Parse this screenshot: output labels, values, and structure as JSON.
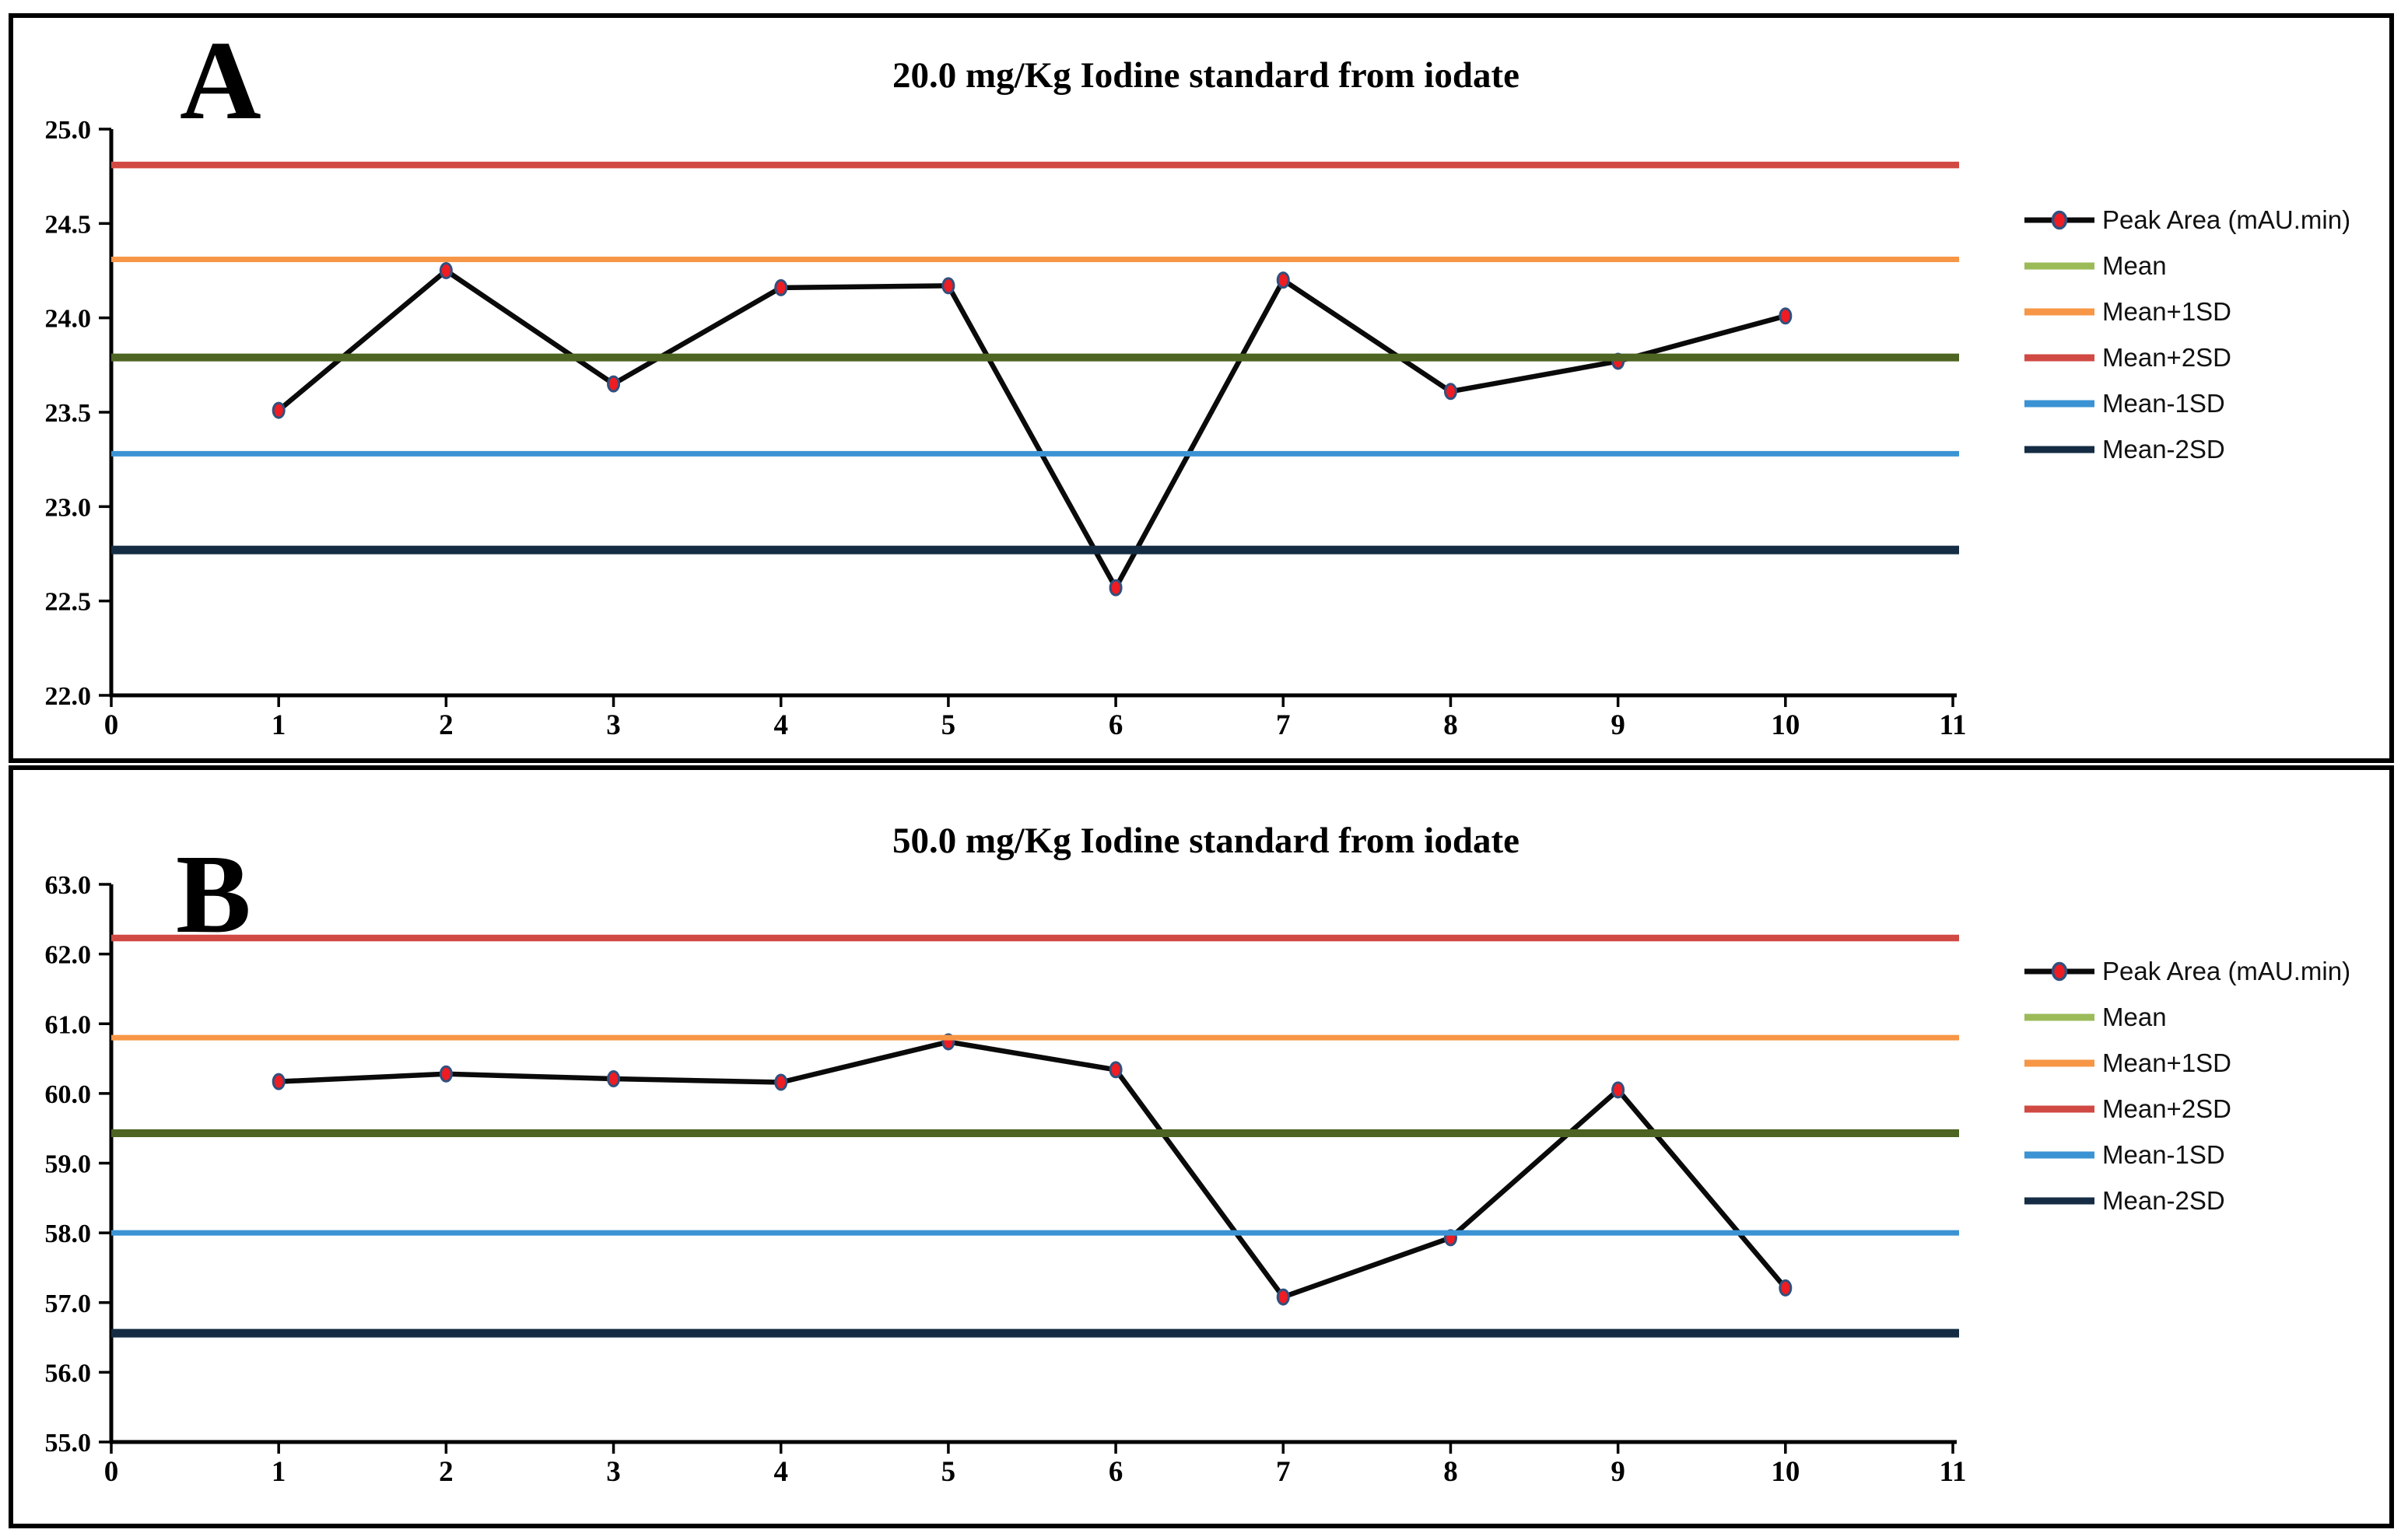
{
  "figure": {
    "background_color": "#ffffff",
    "panel_border_color": "#000000",
    "panel_labels": [
      "A",
      "B"
    ]
  },
  "chart_data": [
    {
      "type": "line",
      "panel_label": "A",
      "title": "20.0 mg/Kg Iodine standard from iodate",
      "xlabel": "",
      "ylabel": "",
      "xlim": [
        0,
        11
      ],
      "ylim": [
        22.0,
        25.0
      ],
      "x_ticks": [
        0,
        1,
        2,
        3,
        4,
        5,
        6,
        7,
        8,
        9,
        10,
        11
      ],
      "x_tick_labels": [
        "0",
        "1",
        "2",
        "3",
        "4",
        "5",
        "6",
        "7",
        "8",
        "9",
        "10",
        "11"
      ],
      "y_ticks": [
        25.0,
        24.5,
        24.0,
        23.5,
        23.0,
        22.5,
        22.0
      ],
      "y_tick_labels": [
        "25.0",
        "24.5",
        "24.0",
        "23.5",
        "23.0",
        "22.5",
        "22.0"
      ],
      "grid": false,
      "legend_position": "right-outside",
      "x": [
        1,
        2,
        3,
        4,
        5,
        6,
        7,
        8,
        9,
        10
      ],
      "series": [
        {
          "name": "Peak Area (mAU.min)",
          "kind": "line-markers",
          "color": "#0a0a0a",
          "marker_fill": "#ee1c23",
          "marker_edge": "#30507e",
          "values": [
            23.51,
            24.25,
            23.65,
            24.16,
            24.17,
            22.57,
            24.2,
            23.61,
            23.77,
            24.01
          ]
        },
        {
          "name": "Mean",
          "kind": "hline",
          "color": "#4e6422",
          "legend_color": "#9bbb59",
          "value": 23.79
        },
        {
          "name": "Mean+1SD",
          "kind": "hline",
          "color": "#f79646",
          "value": 24.31
        },
        {
          "name": "Mean+2SD",
          "kind": "hline",
          "color": "#d04a43",
          "value": 24.81
        },
        {
          "name": "Mean-1SD",
          "kind": "hline",
          "color": "#3b93d3",
          "value": 23.28
        },
        {
          "name": "Mean-2SD",
          "kind": "hline",
          "color": "#152c44",
          "value": 22.77
        }
      ]
    },
    {
      "type": "line",
      "panel_label": "B",
      "title": "50.0 mg/Kg Iodine standard from iodate",
      "xlabel": "",
      "ylabel": "",
      "xlim": [
        0,
        11
      ],
      "ylim": [
        55.0,
        63.0
      ],
      "x_ticks": [
        0,
        1,
        2,
        3,
        4,
        5,
        6,
        7,
        8,
        9,
        10,
        11
      ],
      "x_tick_labels": [
        "0",
        "1",
        "2",
        "3",
        "4",
        "5",
        "6",
        "7",
        "8",
        "9",
        "10",
        "11"
      ],
      "y_ticks": [
        63.0,
        62.0,
        61.0,
        60.0,
        59.0,
        58.0,
        57.0,
        56.0,
        55.0
      ],
      "y_tick_labels": [
        "63.0",
        "62.0",
        "61.0",
        "60.0",
        "59.0",
        "58.0",
        "57.0",
        "56.0",
        "55.0"
      ],
      "grid": false,
      "legend_position": "right-outside",
      "x": [
        1,
        2,
        3,
        4,
        5,
        6,
        7,
        8,
        9,
        10
      ],
      "series": [
        {
          "name": "Peak Area (mAU.min)",
          "kind": "line-markers",
          "color": "#0a0a0a",
          "marker_fill": "#ee1c23",
          "marker_edge": "#30507e",
          "values": [
            60.17,
            60.28,
            60.21,
            60.16,
            60.74,
            60.34,
            57.08,
            57.93,
            60.05,
            57.21
          ]
        },
        {
          "name": "Mean",
          "kind": "hline",
          "color": "#4e6422",
          "legend_color": "#9bbb59",
          "value": 59.43
        },
        {
          "name": "Mean+1SD",
          "kind": "hline",
          "color": "#f79646",
          "value": 60.8
        },
        {
          "name": "Mean+2SD",
          "kind": "hline",
          "color": "#d04a43",
          "value": 62.23
        },
        {
          "name": "Mean-1SD",
          "kind": "hline",
          "color": "#3b93d3",
          "value": 58.0
        },
        {
          "name": "Mean-2SD",
          "kind": "hline",
          "color": "#152c44",
          "value": 56.56
        }
      ]
    }
  ]
}
